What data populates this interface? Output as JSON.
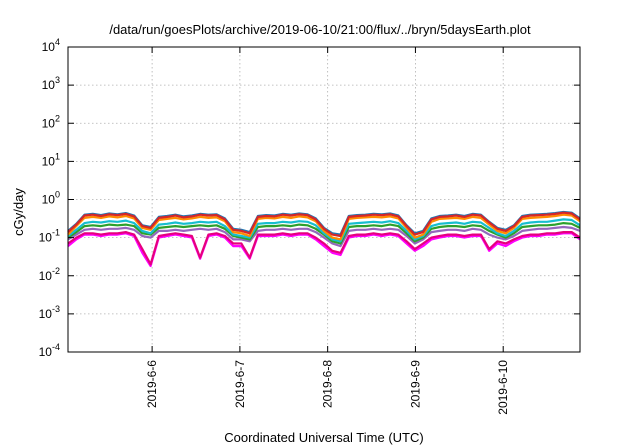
{
  "chart_data": {
    "type": "line",
    "title": "/data/run/goesPlots/archive/2019-06-10/21:00/flux/../bryn/5daysEarth.plot",
    "xlabel": "Coordinated Universal Time (UTC)",
    "ylabel": "cGy/day",
    "y_scale": "log",
    "ylim": [
      0.0001,
      10000
    ],
    "y_ticks": [
      {
        "base": "10",
        "exp": "-4",
        "value": 0.0001
      },
      {
        "base": "10",
        "exp": "-3",
        "value": 0.001
      },
      {
        "base": "10",
        "exp": "-2",
        "value": 0.01
      },
      {
        "base": "10",
        "exp": "-1",
        "value": 0.1
      },
      {
        "base": "10",
        "exp": "0",
        "value": 1
      },
      {
        "base": "10",
        "exp": "1",
        "value": 10
      },
      {
        "base": "10",
        "exp": "2",
        "value": 100
      },
      {
        "base": "10",
        "exp": "3",
        "value": 1000
      },
      {
        "base": "10",
        "exp": "4",
        "value": 10000
      }
    ],
    "xlim": [
      "2019-06-05 01:00",
      "2019-06-10 21:00"
    ],
    "x_ticks": [
      "2019-6-6",
      "2019-6-7",
      "2019-6-8",
      "2019-6-9",
      "2019-6-10"
    ],
    "grid": true,
    "legend": "none",
    "series": [
      {
        "color": "#d62728",
        "values": [
          0.14,
          0.22,
          0.38,
          0.4,
          0.37,
          0.41,
          0.39,
          0.42,
          0.36,
          0.2,
          0.18,
          0.33,
          0.35,
          0.38,
          0.34,
          0.36,
          0.4,
          0.38,
          0.39,
          0.3,
          0.16,
          0.15,
          0.13,
          0.35,
          0.37,
          0.36,
          0.4,
          0.38,
          0.41,
          0.39,
          0.3,
          0.17,
          0.12,
          0.11,
          0.35,
          0.37,
          0.38,
          0.4,
          0.39,
          0.41,
          0.36,
          0.2,
          0.12,
          0.14,
          0.3,
          0.35,
          0.36,
          0.38,
          0.35,
          0.4,
          0.38,
          0.25,
          0.17,
          0.15,
          0.2,
          0.35,
          0.38,
          0.39,
          0.4,
          0.42,
          0.45,
          0.43,
          0.3
        ]
      },
      {
        "color": "#ff8c00",
        "values": [
          0.12,
          0.2,
          0.33,
          0.35,
          0.33,
          0.36,
          0.34,
          0.37,
          0.32,
          0.18,
          0.16,
          0.29,
          0.31,
          0.33,
          0.3,
          0.32,
          0.35,
          0.33,
          0.34,
          0.27,
          0.14,
          0.13,
          0.11,
          0.31,
          0.33,
          0.32,
          0.35,
          0.33,
          0.36,
          0.34,
          0.27,
          0.15,
          0.1,
          0.09,
          0.31,
          0.33,
          0.34,
          0.35,
          0.34,
          0.36,
          0.32,
          0.18,
          0.1,
          0.12,
          0.26,
          0.31,
          0.32,
          0.33,
          0.31,
          0.35,
          0.33,
          0.22,
          0.15,
          0.13,
          0.18,
          0.31,
          0.33,
          0.34,
          0.35,
          0.37,
          0.4,
          0.38,
          0.27
        ]
      },
      {
        "color": "#1f77b4",
        "values": [
          0.15,
          0.23,
          0.4,
          0.42,
          0.39,
          0.43,
          0.41,
          0.44,
          0.38,
          0.21,
          0.19,
          0.35,
          0.37,
          0.4,
          0.36,
          0.38,
          0.42,
          0.4,
          0.41,
          0.32,
          0.17,
          0.16,
          0.14,
          0.37,
          0.39,
          0.38,
          0.42,
          0.4,
          0.43,
          0.41,
          0.32,
          0.18,
          0.13,
          0.12,
          0.37,
          0.39,
          0.4,
          0.42,
          0.41,
          0.43,
          0.38,
          0.21,
          0.13,
          0.15,
          0.32,
          0.37,
          0.38,
          0.4,
          0.37,
          0.42,
          0.4,
          0.26,
          0.18,
          0.16,
          0.21,
          0.37,
          0.4,
          0.41,
          0.42,
          0.44,
          0.47,
          0.45,
          0.32
        ]
      },
      {
        "color": "#17becf",
        "values": [
          0.11,
          0.16,
          0.24,
          0.26,
          0.25,
          0.27,
          0.26,
          0.28,
          0.24,
          0.15,
          0.13,
          0.22,
          0.23,
          0.25,
          0.23,
          0.24,
          0.26,
          0.25,
          0.26,
          0.2,
          0.12,
          0.11,
          0.1,
          0.23,
          0.24,
          0.24,
          0.26,
          0.25,
          0.27,
          0.26,
          0.21,
          0.13,
          0.09,
          0.08,
          0.23,
          0.24,
          0.25,
          0.26,
          0.25,
          0.27,
          0.24,
          0.15,
          0.09,
          0.11,
          0.2,
          0.23,
          0.24,
          0.25,
          0.23,
          0.26,
          0.25,
          0.18,
          0.13,
          0.11,
          0.15,
          0.23,
          0.25,
          0.26,
          0.26,
          0.28,
          0.3,
          0.29,
          0.21
        ]
      },
      {
        "color": "#2ca02c",
        "values": [
          0.1,
          0.14,
          0.2,
          0.21,
          0.2,
          0.22,
          0.21,
          0.22,
          0.2,
          0.13,
          0.12,
          0.18,
          0.19,
          0.2,
          0.19,
          0.2,
          0.21,
          0.2,
          0.21,
          0.17,
          0.11,
          0.1,
          0.09,
          0.19,
          0.2,
          0.2,
          0.21,
          0.2,
          0.22,
          0.21,
          0.17,
          0.12,
          0.08,
          0.07,
          0.19,
          0.2,
          0.2,
          0.21,
          0.2,
          0.22,
          0.2,
          0.13,
          0.08,
          0.1,
          0.17,
          0.19,
          0.2,
          0.2,
          0.19,
          0.21,
          0.2,
          0.15,
          0.12,
          0.1,
          0.13,
          0.19,
          0.2,
          0.21,
          0.21,
          0.22,
          0.24,
          0.23,
          0.18
        ]
      },
      {
        "color": "#9467bd",
        "values": [
          0.09,
          0.12,
          0.16,
          0.17,
          0.16,
          0.17,
          0.17,
          0.18,
          0.16,
          0.11,
          0.1,
          0.15,
          0.15,
          0.16,
          0.15,
          0.16,
          0.17,
          0.16,
          0.17,
          0.14,
          0.09,
          0.09,
          0.08,
          0.15,
          0.16,
          0.16,
          0.17,
          0.16,
          0.17,
          0.17,
          0.14,
          0.1,
          0.07,
          0.06,
          0.15,
          0.16,
          0.16,
          0.17,
          0.16,
          0.17,
          0.16,
          0.11,
          0.07,
          0.09,
          0.14,
          0.15,
          0.16,
          0.16,
          0.15,
          0.17,
          0.16,
          0.12,
          0.1,
          0.09,
          0.11,
          0.15,
          0.16,
          0.17,
          0.17,
          0.18,
          0.19,
          0.18,
          0.15
        ]
      },
      {
        "color": "#e6007e",
        "values": [
          0.07,
          0.1,
          0.13,
          0.13,
          0.12,
          0.13,
          0.13,
          0.14,
          0.12,
          0.05,
          0.02,
          0.11,
          0.12,
          0.13,
          0.12,
          0.11,
          0.03,
          0.12,
          0.13,
          0.11,
          0.07,
          0.07,
          0.03,
          0.12,
          0.12,
          0.12,
          0.13,
          0.12,
          0.13,
          0.13,
          0.1,
          0.07,
          0.045,
          0.04,
          0.11,
          0.12,
          0.12,
          0.13,
          0.12,
          0.13,
          0.12,
          0.08,
          0.05,
          0.07,
          0.1,
          0.11,
          0.12,
          0.12,
          0.11,
          0.12,
          0.12,
          0.05,
          0.08,
          0.07,
          0.09,
          0.11,
          0.12,
          0.12,
          0.13,
          0.13,
          0.14,
          0.14,
          0.1
        ]
      },
      {
        "color": "#ff00ff",
        "values": [
          0.06,
          0.09,
          0.12,
          0.12,
          0.11,
          0.12,
          0.12,
          0.13,
          0.11,
          0.04,
          0.018,
          0.1,
          0.11,
          0.12,
          0.11,
          0.1,
          0.028,
          0.11,
          0.12,
          0.1,
          0.06,
          0.06,
          0.028,
          0.11,
          0.11,
          0.11,
          0.12,
          0.11,
          0.12,
          0.12,
          0.09,
          0.06,
          0.04,
          0.035,
          0.1,
          0.11,
          0.11,
          0.12,
          0.11,
          0.12,
          0.11,
          0.07,
          0.045,
          0.06,
          0.09,
          0.1,
          0.11,
          0.11,
          0.1,
          0.11,
          0.11,
          0.045,
          0.07,
          0.06,
          0.08,
          0.1,
          0.11,
          0.11,
          0.12,
          0.12,
          0.13,
          0.13,
          0.09
        ]
      }
    ]
  }
}
